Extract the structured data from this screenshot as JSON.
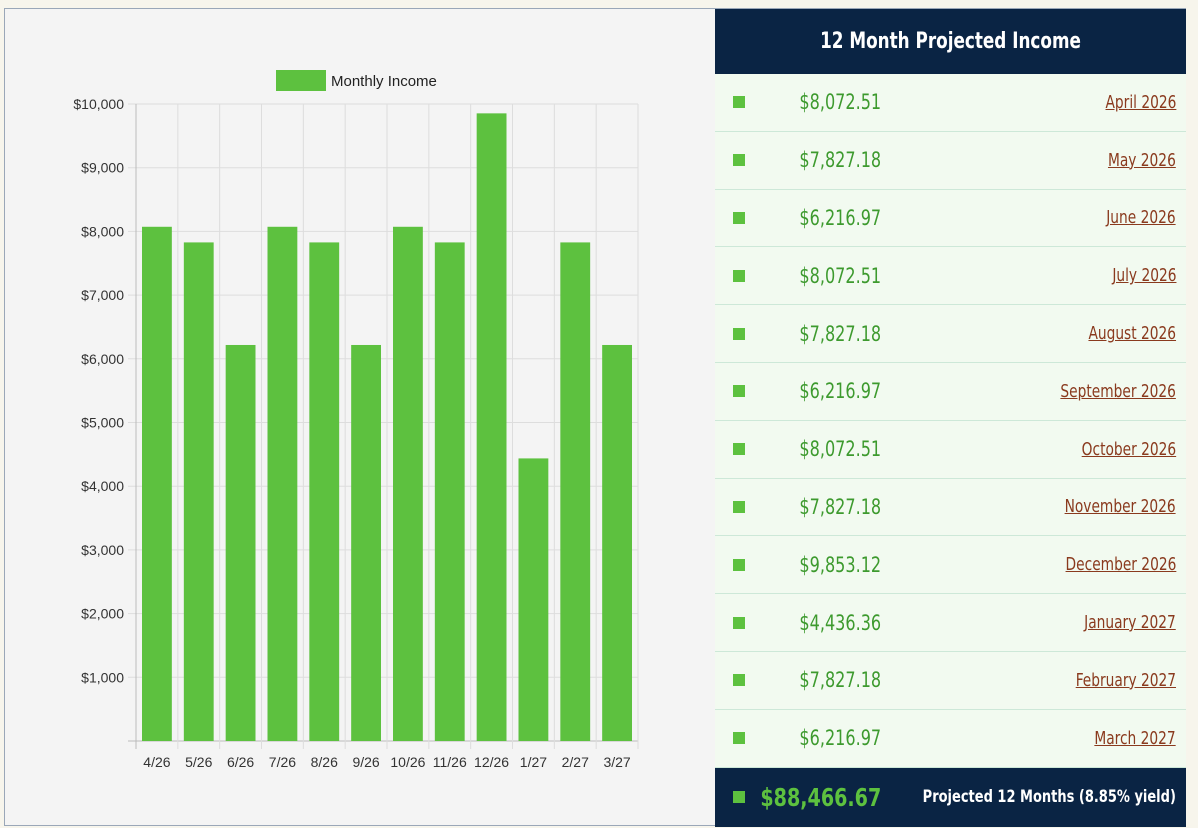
{
  "chart_data": {
    "type": "bar",
    "legend": {
      "label": "Monthly Income",
      "placement": "top"
    },
    "categories": [
      "4/26",
      "5/26",
      "6/26",
      "7/26",
      "8/26",
      "9/26",
      "10/26",
      "11/26",
      "12/26",
      "1/27",
      "2/27",
      "3/27"
    ],
    "series": [
      {
        "name": "Monthly Income",
        "values": [
          8072.51,
          7827.18,
          6216.97,
          8072.51,
          7827.18,
          6216.97,
          8072.51,
          7827.18,
          9853.12,
          4436.36,
          7827.18,
          6216.97
        ]
      }
    ],
    "ylim": [
      0,
      10000
    ],
    "yticks": [
      "$1,000",
      "$2,000",
      "$3,000",
      "$4,000",
      "$5,000",
      "$6,000",
      "$7,000",
      "$8,000",
      "$9,000",
      "$10,000"
    ],
    "grid": true,
    "bar_color": "#5dc13f"
  },
  "table": {
    "title": "12 Month Projected Income",
    "rows": [
      {
        "amount": "$8,072.51",
        "month": "April 2026"
      },
      {
        "amount": "$7,827.18",
        "month": "May 2026"
      },
      {
        "amount": "$6,216.97",
        "month": "June 2026"
      },
      {
        "amount": "$8,072.51",
        "month": "July 2026"
      },
      {
        "amount": "$7,827.18",
        "month": "August 2026"
      },
      {
        "amount": "$6,216.97",
        "month": "September 2026"
      },
      {
        "amount": "$8,072.51",
        "month": "October 2026"
      },
      {
        "amount": "$7,827.18",
        "month": "November 2026"
      },
      {
        "amount": "$9,853.12",
        "month": "December 2026"
      },
      {
        "amount": "$4,436.36",
        "month": "January 2027"
      },
      {
        "amount": "$7,827.18",
        "month": "February 2027"
      },
      {
        "amount": "$6,216.97",
        "month": "March 2027"
      }
    ],
    "total": {
      "amount": "$88,466.67",
      "label": "Projected 12 Months (8.85% yield)"
    },
    "colors": {
      "header": "#0a2444",
      "amount": "#3d9a2e",
      "month_link": "#8a3a1e"
    }
  }
}
